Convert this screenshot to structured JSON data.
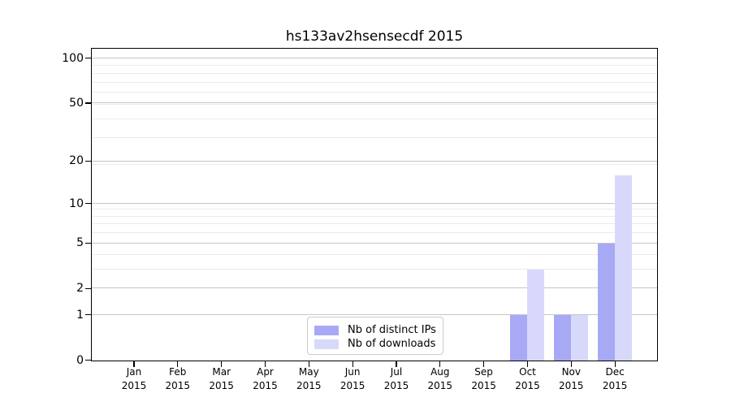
{
  "chart_data": {
    "type": "bar",
    "title": "hs133av2hsensecdf 2015",
    "categories": [
      "Jan",
      "Feb",
      "Mar",
      "Apr",
      "May",
      "Jun",
      "Jul",
      "Aug",
      "Sep",
      "Oct",
      "Nov",
      "Dec"
    ],
    "category_year": "2015",
    "series": [
      {
        "name": "Nb of distinct IPs",
        "color": "#a8a9f5",
        "values": [
          0,
          0,
          0,
          0,
          0,
          0,
          0,
          0,
          0,
          1,
          1,
          5
        ]
      },
      {
        "name": "Nb of downloads",
        "color": "#d8d9fa",
        "values": [
          0,
          0,
          0,
          0,
          0,
          0,
          0,
          0,
          0,
          3,
          1,
          16
        ]
      }
    ],
    "yscale": "log1p",
    "ylim": [
      0,
      118
    ],
    "xlabel": "",
    "ylabel": "",
    "y_major_ticks": [
      0,
      1,
      2,
      5,
      10,
      20,
      50,
      100
    ],
    "y_minor_ticks": [
      3,
      4,
      6,
      7,
      8,
      9,
      19,
      29,
      39,
      49,
      59,
      69,
      79,
      89
    ],
    "grid": true,
    "legend_position": "lower center",
    "colors": {
      "major_grid": "#c6c6c6",
      "minor_grid": "#ebebeb",
      "spine": "#000000",
      "text": "#000000"
    }
  }
}
